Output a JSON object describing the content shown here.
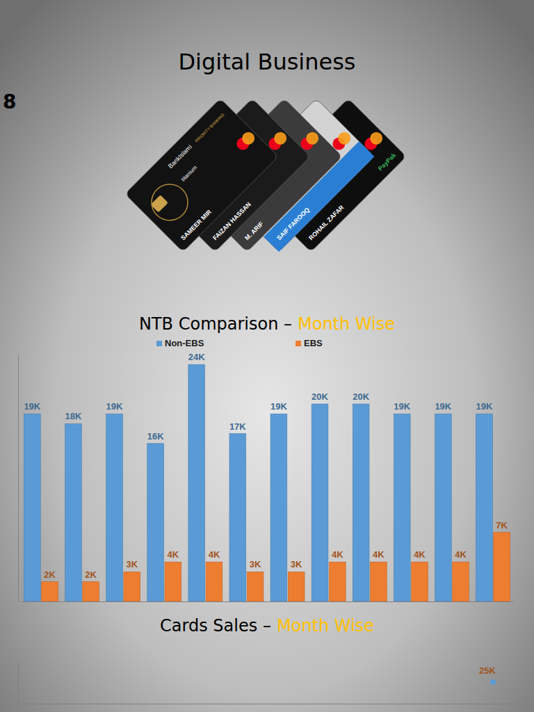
{
  "header": {
    "title": "Digital Business",
    "page_number": "8"
  },
  "cards": [
    {
      "holder": "SAMEER MIR",
      "labels": [
        "BankIslami",
        "PRIORITY BANKING",
        "titanium"
      ]
    },
    {
      "holder": "FAIZAN HASSAN"
    },
    {
      "holder": "M. ARIF"
    },
    {
      "holder": "SAIF FAROOQ"
    },
    {
      "holder": "ROHAIL ZAFAR",
      "labels": [
        "PayPak"
      ]
    }
  ],
  "chart_data": [
    {
      "type": "bar",
      "title": "NTB Comparison –",
      "subtitle": "Month Wise",
      "categories": [
        null,
        null,
        null,
        null,
        null,
        null,
        null,
        null,
        null,
        null,
        null,
        null
      ],
      "series": [
        {
          "name": "Non-EBS",
          "color": "#5b9bd5",
          "values": [
            19,
            18,
            19,
            16,
            24,
            17,
            19,
            20,
            20,
            19,
            19,
            19
          ],
          "value_labels": [
            "19K",
            "18K",
            "19K",
            "16K",
            "24K",
            "17K",
            "19K",
            "20K",
            "20K",
            "19K",
            "19K",
            "19K"
          ]
        },
        {
          "name": "EBS",
          "color": "#ed7d31",
          "values": [
            2,
            2,
            3,
            4,
            4,
            3,
            3,
            4,
            4,
            4,
            4,
            7
          ],
          "value_labels": [
            "2K",
            "2K",
            "3K",
            "4K",
            "4K",
            "3K",
            "3K",
            "4K",
            "4K",
            "4K",
            "4K",
            "7K"
          ]
        }
      ],
      "ylim": [
        0,
        25
      ],
      "legend": "top",
      "data_labels": true,
      "tick_labels": false
    },
    {
      "type": "line",
      "title": "Cards Sales –",
      "subtitle": "Month Wise",
      "categories": [
        null,
        null,
        null,
        null,
        null,
        null,
        null,
        null,
        null,
        null,
        null,
        null
      ],
      "series": [
        {
          "color": "#5b9bd5",
          "marker": "circle",
          "values": [
            null,
            null,
            null,
            null,
            null,
            null,
            null,
            null,
            null,
            null,
            null,
            25
          ],
          "value_labels": [
            null,
            null,
            null,
            null,
            null,
            null,
            null,
            null,
            null,
            null,
            null,
            "25K"
          ]
        }
      ],
      "ylim": [
        20,
        30
      ],
      "data_labels": true,
      "tick_labels": false
    }
  ]
}
